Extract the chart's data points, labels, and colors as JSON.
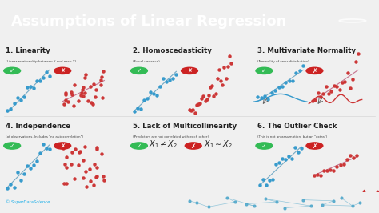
{
  "title": "Assumptions of Linear Regression",
  "title_bg": "#1aaee8",
  "title_color": "#FFFFFF",
  "bg_color": "#f0f0f0",
  "content_bg": "#e8e8e8",
  "blue_dot": "#3399cc",
  "red_dot": "#cc3333",
  "blue_line": "#5599bb",
  "red_line": "#bb5577",
  "green_check_bg": "#33bb55",
  "red_x_bg": "#cc2222",
  "text_dark": "#222222",
  "text_sub": "#444444",
  "sections": [
    {
      "num": "1.",
      "title": "Linearity",
      "subtitle": "(Linear relationship between Y and each X)",
      "type": "linear"
    },
    {
      "num": "2.",
      "title": "Homoscedasticity",
      "subtitle": "(Equal variance)",
      "type": "homo"
    },
    {
      "num": "3.",
      "title": "Multivariate Normality",
      "subtitle": "(Normality of error distribution)",
      "type": "normal"
    },
    {
      "num": "4.",
      "title": "Independence",
      "subtitle": "(of observations. Includes \"no autocorrelation\")",
      "type": "independence"
    },
    {
      "num": "5.",
      "title": "Lack of Multicollinearity",
      "subtitle": "(Predictors are not correlated with each other)",
      "type": "multicoll"
    },
    {
      "num": "6.",
      "title": "The Outlier Check",
      "subtitle": "(This is not an assumption, but an \"extra\")",
      "type": "outlier"
    }
  ],
  "footer_text": "© SuperDataScience",
  "footer_color": "#1aaee8",
  "separator_color": "#ddbb55",
  "network_color": "#55aacc"
}
